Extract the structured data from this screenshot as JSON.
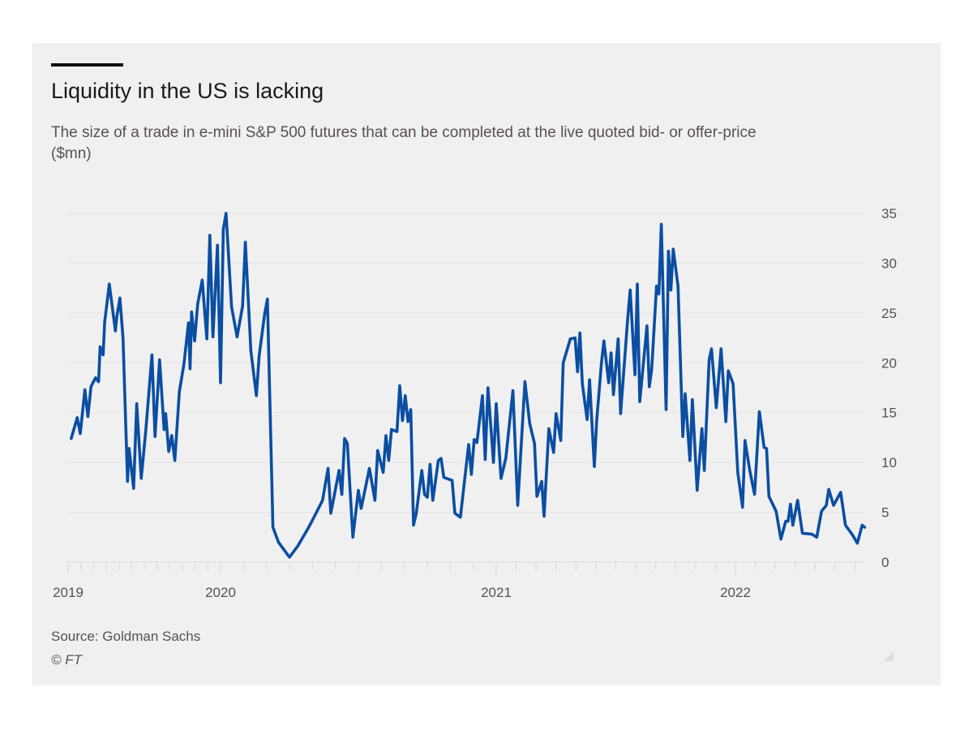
{
  "title": "Liquidity in the US is lacking",
  "subtitle": "The size of a trade in e-mini S&P 500 futures that can be completed at the live quoted bid- or offer-price ($mn)",
  "source": "Source: Goldman Sachs",
  "credit": "© FT",
  "colors": {
    "line": "#0b4ea2",
    "background": "#f0f0f0",
    "grid": "#e4e4e4"
  },
  "chart_data": {
    "type": "line",
    "title": "Liquidity in the US is lacking",
    "xlabel": "",
    "ylabel": "",
    "ylim": [
      0,
      35
    ],
    "yticks": [
      "0",
      "5",
      "10",
      "15",
      "20",
      "25",
      "30",
      "35"
    ],
    "xticks": [
      "2019",
      "2020",
      "2021",
      "2022"
    ],
    "y_axis_position": "right",
    "grid": true,
    "x": [
      2019.02,
      2019.06,
      2019.08,
      2019.11,
      2019.13,
      2019.15,
      2019.18,
      2019.2,
      2019.21,
      2019.23,
      2019.24,
      2019.27,
      2019.31,
      2019.32,
      2019.34,
      2019.36,
      2019.39,
      2019.4,
      2019.43,
      2019.45,
      2019.48,
      2019.51,
      2019.55,
      2019.57,
      2019.6,
      2019.63,
      2019.64,
      2019.66,
      2019.68,
      2019.7,
      2019.73,
      2019.76,
      2019.79,
      2019.8,
      2019.81,
      2019.83,
      2019.85,
      2019.88,
      2019.91,
      2019.93,
      2019.95,
      2019.98,
      2020.0,
      2020.01,
      2020.02,
      2020.04,
      2020.06,
      2020.08,
      2020.09,
      2020.11,
      2020.13,
      2020.14,
      2020.16,
      2020.17,
      2020.19,
      2020.21,
      2020.25,
      2020.28,
      2020.32,
      2020.35,
      2020.37,
      2020.39,
      2020.4,
      2020.43,
      2020.44,
      2020.45,
      2020.46,
      2020.48,
      2020.5,
      2020.51,
      2020.54,
      2020.56,
      2020.57,
      2020.59,
      2020.6,
      2020.61,
      2020.62,
      2020.64,
      2020.65,
      2020.66,
      2020.67,
      2020.68,
      2020.69,
      2020.7,
      2020.71,
      2020.73,
      2020.74,
      2020.75,
      2020.76,
      2020.77,
      2020.79,
      2020.8,
      2020.81,
      2020.84,
      2020.85,
      2020.87,
      2020.9,
      2020.91,
      2020.92,
      2020.93,
      2020.95,
      2020.96,
      2020.97,
      2020.99,
      2021.0,
      2021.02,
      2021.04,
      2021.07,
      2021.09,
      2021.12,
      2021.14,
      2021.16,
      2021.17,
      2021.19,
      2021.2,
      2021.22,
      2021.24,
      2021.25,
      2021.27,
      2021.28,
      2021.31,
      2021.33,
      2021.34,
      2021.35,
      2021.36,
      2021.38,
      2021.39,
      2021.41,
      2021.42,
      2021.44,
      2021.45,
      2021.47,
      2021.48,
      2021.49,
      2021.51,
      2021.52,
      2021.55,
      2021.56,
      2021.58,
      2021.59,
      2021.6,
      2021.63,
      2021.64,
      2021.65,
      2021.67,
      2021.68,
      2021.69,
      2021.71,
      2021.72,
      2021.73,
      2021.74,
      2021.76,
      2021.78,
      2021.79,
      2021.81,
      2021.82,
      2021.84,
      2021.86,
      2021.87,
      2021.89,
      2021.9,
      2021.92,
      2021.94,
      2021.96,
      2021.97,
      2021.99,
      2022.01,
      2022.03,
      2022.04,
      2022.06,
      2022.08,
      2022.1,
      2022.12,
      2022.13,
      2022.14,
      2022.17,
      2022.19,
      2022.21,
      2022.22,
      2022.23,
      2022.24,
      2022.26,
      2022.28,
      2022.32,
      2022.34,
      2022.36,
      2022.38,
      2022.39,
      2022.41,
      2022.44,
      2022.46,
      2022.49,
      2022.51,
      2022.53,
      2022.54
    ],
    "y": [
      12.4,
      14.5,
      12.9,
      17.3,
      14.6,
      17.6,
      18.5,
      18.1,
      21.6,
      20.8,
      24.1,
      27.9,
      23.2,
      24.7,
      26.5,
      22.5,
      8.1,
      11.4,
      7.4,
      15.9,
      8.4,
      13.3,
      20.8,
      12.6,
      20.3,
      13.3,
      14.9,
      11.1,
      12.7,
      10.2,
      17.1,
      19.9,
      24.0,
      19.4,
      25.1,
      22.2,
      25.9,
      28.3,
      22.4,
      32.8,
      22.6,
      31.8,
      18.0,
      33.4,
      35.0,
      25.6,
      22.6,
      25.7,
      32.1,
      21.2,
      16.7,
      20.7,
      24.9,
      26.4,
      3.5,
      2.0,
      0.5,
      1.6,
      3.5,
      5.1,
      6.2,
      9.4,
      4.9,
      9.2,
      6.8,
      12.4,
      11.9,
      2.5,
      7.2,
      5.4,
      9.4,
      6.2,
      11.2,
      9.0,
      12.7,
      10.2,
      13.3,
      13.1,
      17.7,
      14.2,
      16.7,
      14.1,
      15.3,
      3.7,
      4.9,
      9.2,
      6.8,
      6.5,
      9.8,
      6.2,
      10.2,
      10.4,
      8.5,
      8.2,
      4.9,
      4.5,
      11.8,
      8.8,
      12.3,
      12.0,
      16.7,
      10.3,
      17.5,
      10.0,
      15.9,
      8.4,
      10.4,
      17.2,
      5.7,
      18.1,
      13.9,
      11.9,
      6.6,
      8.1,
      4.6,
      13.4,
      11.0,
      14.9,
      12.2,
      20.0,
      22.4,
      22.5,
      19.1,
      23.0,
      17.9,
      14.3,
      18.3,
      9.6,
      14.2,
      20.0,
      22.2,
      18.0,
      21.0,
      16.8,
      22.4,
      14.9,
      24.5,
      27.3,
      18.8,
      27.9,
      16.1,
      23.7,
      17.6,
      19.4,
      27.7,
      26.9,
      33.9,
      15.3,
      31.2,
      27.3,
      31.4,
      27.7,
      12.6,
      16.9,
      10.2,
      16.3,
      7.2,
      13.4,
      9.2,
      20.3,
      21.4,
      15.5,
      21.4,
      14.1,
      19.2,
      17.9,
      9.0,
      5.5,
      12.2,
      9.2,
      6.8,
      15.1,
      11.5,
      11.4,
      6.6,
      5.1,
      2.3,
      4.1,
      4.1,
      5.8,
      3.7,
      6.2,
      2.9,
      2.8,
      2.5,
      5.1,
      5.7,
      7.3,
      5.7,
      7.0,
      3.7,
      2.7,
      1.9,
      3.7,
      3.5
    ]
  }
}
